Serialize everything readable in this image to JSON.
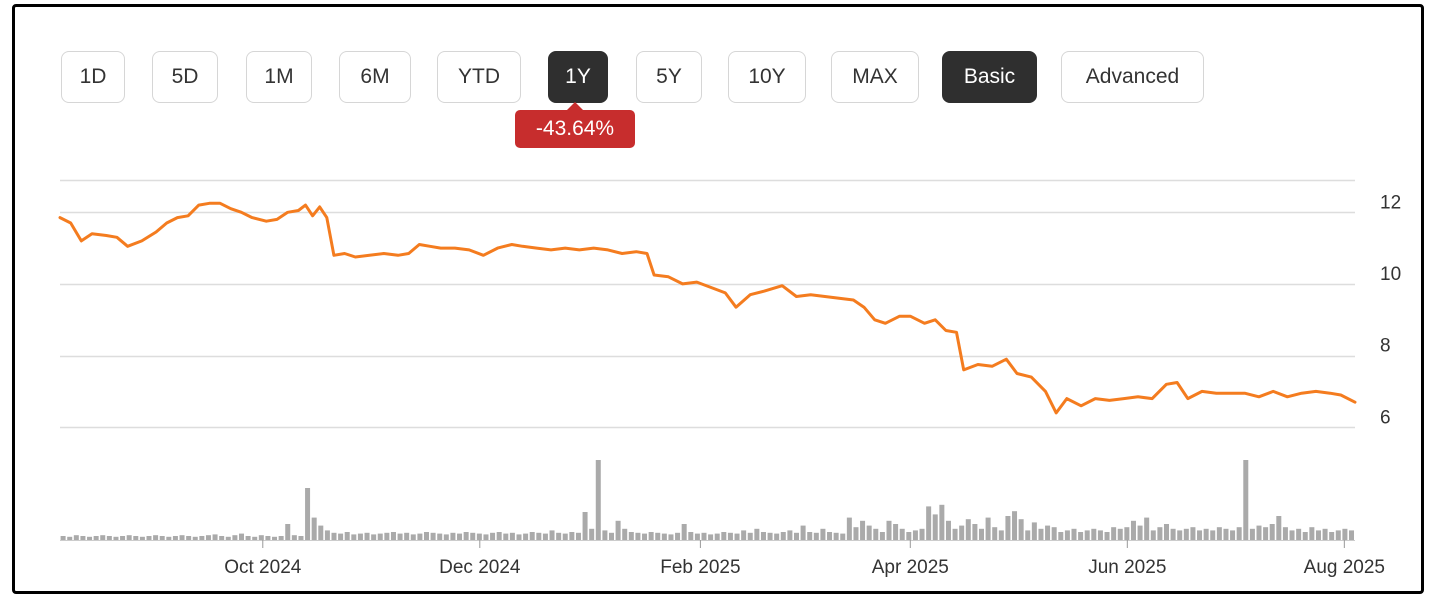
{
  "ranges": [
    {
      "label": "1D"
    },
    {
      "label": "5D"
    },
    {
      "label": "1M"
    },
    {
      "label": "6M"
    },
    {
      "label": "YTD"
    },
    {
      "label": "1Y",
      "active": true
    },
    {
      "label": "5Y"
    },
    {
      "label": "10Y"
    },
    {
      "label": "MAX"
    }
  ],
  "view_modes": [
    {
      "label": "Basic",
      "active": true
    },
    {
      "label": "Advanced"
    }
  ],
  "change_badge": {
    "text": "-43.64%",
    "color": "#c72d2d"
  },
  "chart_data": {
    "type": "line",
    "title": "",
    "xlabel": "",
    "ylabel": "",
    "x_start": "2024-08-05",
    "x_end": "2025-08-04",
    "ylim": [
      5.7,
      12.9
    ],
    "y_ticks": [
      6,
      8,
      10,
      12
    ],
    "x_ticks": [
      {
        "label": "Oct 2024",
        "date": "2024-10-01"
      },
      {
        "label": "Dec 2024",
        "date": "2024-12-01"
      },
      {
        "label": "Feb 2025",
        "date": "2025-02-01"
      },
      {
        "label": "Apr 2025",
        "date": "2025-04-01"
      },
      {
        "label": "Jun 2025",
        "date": "2025-06-01"
      },
      {
        "label": "Aug 2025",
        "date": "2025-08-01"
      }
    ],
    "grid": true,
    "line_color": "#f47c1f",
    "volume_color": "#aaaaaa",
    "series": [
      {
        "points": [
          [
            "2024-08-05",
            11.85
          ],
          [
            "2024-08-08",
            11.7
          ],
          [
            "2024-08-11",
            11.2
          ],
          [
            "2024-08-14",
            11.4
          ],
          [
            "2024-08-18",
            11.35
          ],
          [
            "2024-08-21",
            11.3
          ],
          [
            "2024-08-24",
            11.05
          ],
          [
            "2024-08-28",
            11.2
          ],
          [
            "2024-09-01",
            11.45
          ],
          [
            "2024-09-04",
            11.7
          ],
          [
            "2024-09-07",
            11.85
          ],
          [
            "2024-09-10",
            11.9
          ],
          [
            "2024-09-13",
            12.2
          ],
          [
            "2024-09-16",
            12.25
          ],
          [
            "2024-09-19",
            12.25
          ],
          [
            "2024-09-22",
            12.1
          ],
          [
            "2024-09-25",
            12.0
          ],
          [
            "2024-09-28",
            11.85
          ],
          [
            "2024-10-02",
            11.75
          ],
          [
            "2024-10-05",
            11.8
          ],
          [
            "2024-10-08",
            12.0
          ],
          [
            "2024-10-11",
            12.05
          ],
          [
            "2024-10-13",
            12.2
          ],
          [
            "2024-10-15",
            11.9
          ],
          [
            "2024-10-17",
            12.15
          ],
          [
            "2024-10-19",
            11.85
          ],
          [
            "2024-10-21",
            10.8
          ],
          [
            "2024-10-24",
            10.85
          ],
          [
            "2024-10-27",
            10.75
          ],
          [
            "2024-10-31",
            10.8
          ],
          [
            "2024-11-04",
            10.85
          ],
          [
            "2024-11-08",
            10.8
          ],
          [
            "2024-11-11",
            10.85
          ],
          [
            "2024-11-14",
            11.1
          ],
          [
            "2024-11-17",
            11.05
          ],
          [
            "2024-11-20",
            11.0
          ],
          [
            "2024-11-24",
            11.0
          ],
          [
            "2024-11-28",
            10.95
          ],
          [
            "2024-12-02",
            10.8
          ],
          [
            "2024-12-06",
            11.0
          ],
          [
            "2024-12-10",
            11.1
          ],
          [
            "2024-12-13",
            11.05
          ],
          [
            "2024-12-17",
            11.0
          ],
          [
            "2024-12-21",
            10.95
          ],
          [
            "2024-12-25",
            11.0
          ],
          [
            "2024-12-29",
            10.95
          ],
          [
            "2025-01-02",
            11.0
          ],
          [
            "2025-01-06",
            10.95
          ],
          [
            "2025-01-10",
            10.85
          ],
          [
            "2025-01-14",
            10.9
          ],
          [
            "2025-01-17",
            10.85
          ],
          [
            "2025-01-19",
            10.25
          ],
          [
            "2025-01-23",
            10.2
          ],
          [
            "2025-01-27",
            10.0
          ],
          [
            "2025-01-31",
            10.05
          ],
          [
            "2025-02-04",
            9.9
          ],
          [
            "2025-02-08",
            9.75
          ],
          [
            "2025-02-11",
            9.35
          ],
          [
            "2025-02-15",
            9.7
          ],
          [
            "2025-02-19",
            9.8
          ],
          [
            "2025-02-24",
            9.95
          ],
          [
            "2025-02-28",
            9.65
          ],
          [
            "2025-03-04",
            9.7
          ],
          [
            "2025-03-08",
            9.65
          ],
          [
            "2025-03-12",
            9.6
          ],
          [
            "2025-03-16",
            9.55
          ],
          [
            "2025-03-19",
            9.35
          ],
          [
            "2025-03-22",
            9.0
          ],
          [
            "2025-03-25",
            8.9
          ],
          [
            "2025-03-29",
            9.1
          ],
          [
            "2025-04-01",
            9.1
          ],
          [
            "2025-04-05",
            8.9
          ],
          [
            "2025-04-08",
            9.0
          ],
          [
            "2025-04-11",
            8.7
          ],
          [
            "2025-04-14",
            8.65
          ],
          [
            "2025-04-16",
            7.6
          ],
          [
            "2025-04-20",
            7.75
          ],
          [
            "2025-04-24",
            7.7
          ],
          [
            "2025-04-28",
            7.9
          ],
          [
            "2025-05-01",
            7.5
          ],
          [
            "2025-05-05",
            7.4
          ],
          [
            "2025-05-09",
            7.0
          ],
          [
            "2025-05-12",
            6.4
          ],
          [
            "2025-05-15",
            6.8
          ],
          [
            "2025-05-19",
            6.6
          ],
          [
            "2025-05-23",
            6.8
          ],
          [
            "2025-05-27",
            6.75
          ],
          [
            "2025-05-31",
            6.8
          ],
          [
            "2025-06-04",
            6.85
          ],
          [
            "2025-06-08",
            6.8
          ],
          [
            "2025-06-12",
            7.2
          ],
          [
            "2025-06-15",
            7.25
          ],
          [
            "2025-06-18",
            6.8
          ],
          [
            "2025-06-22",
            7.0
          ],
          [
            "2025-06-26",
            6.95
          ],
          [
            "2025-06-30",
            6.95
          ],
          [
            "2025-07-04",
            6.95
          ],
          [
            "2025-07-08",
            6.85
          ],
          [
            "2025-07-12",
            7.0
          ],
          [
            "2025-07-16",
            6.85
          ],
          [
            "2025-07-20",
            6.95
          ],
          [
            "2025-07-24",
            7.0
          ],
          [
            "2025-07-28",
            6.95
          ],
          [
            "2025-07-31",
            6.9
          ],
          [
            "2025-08-04",
            6.7
          ]
        ]
      }
    ],
    "volume_ylim": [
      0,
      100
    ],
    "volume": {
      "values": [
        5,
        4,
        6,
        5,
        4,
        5,
        6,
        5,
        4,
        5,
        6,
        5,
        4,
        5,
        6,
        5,
        4,
        5,
        6,
        5,
        4,
        5,
        6,
        7,
        5,
        4,
        6,
        8,
        5,
        4,
        6,
        5,
        4,
        5,
        20,
        6,
        5,
        65,
        28,
        18,
        12,
        9,
        8,
        10,
        7,
        8,
        9,
        7,
        8,
        9,
        10,
        8,
        9,
        7,
        8,
        10,
        9,
        8,
        7,
        9,
        8,
        10,
        9,
        8,
        7,
        9,
        10,
        8,
        9,
        7,
        8,
        10,
        9,
        8,
        12,
        9,
        8,
        10,
        9,
        35,
        14,
        100,
        12,
        9,
        24,
        14,
        10,
        9,
        8,
        10,
        9,
        8,
        7,
        9,
        20,
        10,
        8,
        9,
        7,
        8,
        10,
        9,
        8,
        12,
        9,
        14,
        10,
        9,
        8,
        10,
        12,
        9,
        18,
        10,
        9,
        14,
        10,
        9,
        8,
        28,
        16,
        24,
        18,
        14,
        10,
        24,
        20,
        14,
        10,
        12,
        14,
        42,
        32,
        44,
        24,
        14,
        18,
        26,
        20,
        14,
        28,
        16,
        12,
        30,
        36,
        26,
        12,
        22,
        14,
        18,
        16,
        10,
        12,
        14,
        10,
        12,
        14,
        12,
        10,
        16,
        14,
        16,
        24,
        18,
        28,
        12,
        16,
        20,
        14,
        12,
        14,
        16,
        12,
        14,
        12,
        16,
        14,
        12,
        16,
        100,
        14,
        18,
        16,
        20,
        30,
        16,
        12,
        14,
        10,
        16,
        12,
        14,
        10,
        12,
        14,
        12
      ]
    }
  }
}
